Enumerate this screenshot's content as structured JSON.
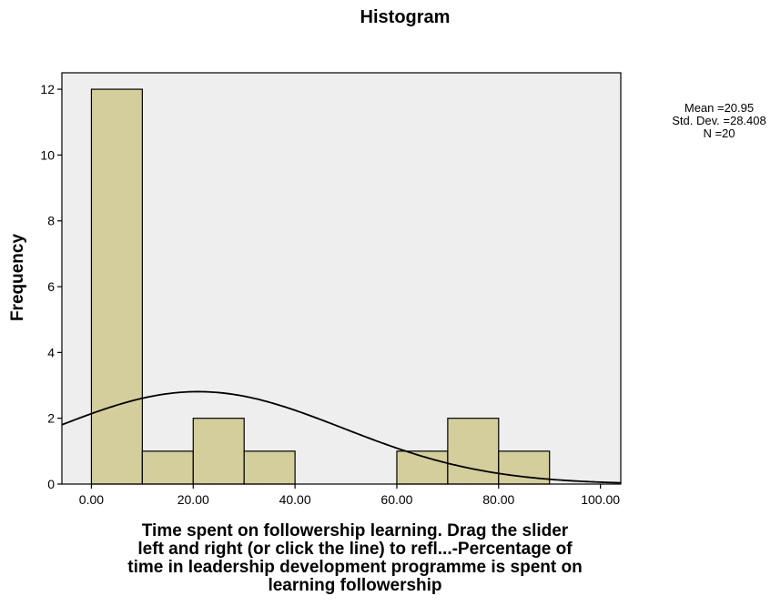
{
  "chart_data": {
    "type": "bar",
    "title": "Histogram",
    "xlabel_lines": [
      "Time spent on followership learning.    Drag the slider",
      "left and right (or click the line) to refl...-Percentage of",
      "time in leadership development programme is spent on",
      "learning followership"
    ],
    "ylabel": "Frequency",
    "bins": [
      {
        "start": 0,
        "end": 10,
        "count": 12
      },
      {
        "start": 10,
        "end": 20,
        "count": 1
      },
      {
        "start": 20,
        "end": 30,
        "count": 2
      },
      {
        "start": 30,
        "end": 40,
        "count": 1
      },
      {
        "start": 60,
        "end": 70,
        "count": 1
      },
      {
        "start": 70,
        "end": 80,
        "count": 2
      },
      {
        "start": 80,
        "end": 90,
        "count": 1
      }
    ],
    "xlim": [
      -5.8,
      104
    ],
    "ylim": [
      0,
      12.5
    ],
    "xticks": [
      0,
      20,
      40,
      60,
      80,
      100
    ],
    "xtick_labels": [
      "0.00",
      "20.00",
      "40.00",
      "60.00",
      "80.00",
      "100.00"
    ],
    "yticks": [
      0,
      2,
      4,
      6,
      8,
      10,
      12
    ],
    "ytick_labels": [
      "0",
      "2",
      "4",
      "6",
      "8",
      "10",
      "12"
    ],
    "normal_curve": {
      "mean": 20.95,
      "sd": 28.408,
      "n": 20,
      "bin_width": 10
    },
    "stats_text": [
      "Mean =20.95",
      "Std. Dev. =28.408",
      "N =20"
    ],
    "colors": {
      "plot_bg": "#eeeeee",
      "bar_fill": "#d3ce9b",
      "bar_edge": "#000000",
      "curve": "#000000"
    },
    "grid": false,
    "legend": "none"
  }
}
